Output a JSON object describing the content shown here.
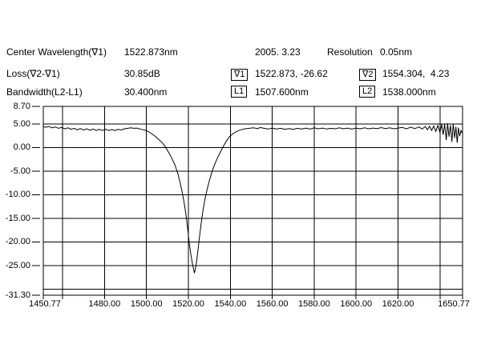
{
  "app": {
    "background": "#ffffff",
    "foreground": "#000000"
  },
  "readouts": {
    "rows": [
      {
        "label": "Center Wavelength(∇1)",
        "value": "1522.873nm"
      },
      {
        "label": "Loss(∇2-∇1)",
        "value": "30.85dB"
      },
      {
        "label": "Bandwidth(L2-L1)",
        "value": "30.400nm"
      }
    ],
    "date": "2005. 3.23",
    "resolution_label": "Resolution",
    "resolution_value": "0.05nm",
    "markers": [
      {
        "tag": "∇1",
        "value": "1522.873, -26.62"
      },
      {
        "tag": "∇2",
        "value": "1554.304,  4.23"
      },
      {
        "tag": "L1",
        "value": "1507.600nm"
      },
      {
        "tag": "L2",
        "value": "1538.000nm"
      }
    ]
  },
  "chart_data": {
    "type": "line",
    "title": "",
    "x_range": [
      1450.77,
      1650.77
    ],
    "y_range": [
      -31.3,
      8.7
    ],
    "grid": true,
    "legend": "none",
    "line_color": "#000000",
    "grid_color": "#000000",
    "x_gridlines": [
      1460,
      1480,
      1500,
      1520,
      1540,
      1560,
      1580,
      1600,
      1620,
      1640
    ],
    "y_gridlines": [
      5,
      0,
      -5,
      -10,
      -15,
      -20,
      -25,
      -30
    ],
    "x_ticks": [
      {
        "pos": 1450.77,
        "label": "1450.77"
      },
      {
        "pos": 1480,
        "label": "1480.00"
      },
      {
        "pos": 1500,
        "label": "1500.00"
      },
      {
        "pos": 1520,
        "label": "1520.00"
      },
      {
        "pos": 1540,
        "label": "1540.00"
      },
      {
        "pos": 1560,
        "label": "1560.00"
      },
      {
        "pos": 1580,
        "label": "1580.00"
      },
      {
        "pos": 1600,
        "label": "1600.00"
      },
      {
        "pos": 1620,
        "label": "1620.00"
      },
      {
        "pos": 1650.77,
        "label": "1650.77"
      }
    ],
    "y_ticks": [
      {
        "pos": 8.7,
        "label": "8.70"
      },
      {
        "pos": 5,
        "label": "5.00"
      },
      {
        "pos": 0,
        "label": "0.00"
      },
      {
        "pos": -5,
        "label": "-5.00"
      },
      {
        "pos": -10,
        "label": "-10.00"
      },
      {
        "pos": -15,
        "label": "-15.00"
      },
      {
        "pos": -20,
        "label": "-20.00"
      },
      {
        "pos": -25,
        "label": "-25.00"
      },
      {
        "pos": -31.3,
        "label": "-31.30"
      }
    ],
    "annotations": {
      "marker_nabla1": {
        "wavelength_nm": 1522.873,
        "level_db": -26.62
      },
      "marker_nabla2": {
        "wavelength_nm": 1554.304,
        "level_db": 4.23
      },
      "marker_L1_nm": 1507.6,
      "marker_L2_nm": 1538.0,
      "loss_db": 30.85,
      "bandwidth_nm": 30.4,
      "resolution_nm": 0.05
    },
    "series": [
      {
        "name": "transmission-trace",
        "points": [
          [
            1450.77,
            4.4
          ],
          [
            1452,
            4.3
          ],
          [
            1453.5,
            4.45
          ],
          [
            1455,
            4.15
          ],
          [
            1456.5,
            4.35
          ],
          [
            1458,
            4.05
          ],
          [
            1459.5,
            4.25
          ],
          [
            1461,
            3.95
          ],
          [
            1462.5,
            4.15
          ],
          [
            1464,
            3.85
          ],
          [
            1465.5,
            4.05
          ],
          [
            1467,
            3.75
          ],
          [
            1468.5,
            4.0
          ],
          [
            1470,
            3.7
          ],
          [
            1471.5,
            3.95
          ],
          [
            1473,
            3.65
          ],
          [
            1474.5,
            3.9
          ],
          [
            1476,
            3.6
          ],
          [
            1477.5,
            3.85
          ],
          [
            1479,
            3.6
          ],
          [
            1480.5,
            3.85
          ],
          [
            1482,
            3.6
          ],
          [
            1483.5,
            3.8
          ],
          [
            1485,
            3.6
          ],
          [
            1486.5,
            3.85
          ],
          [
            1488,
            3.7
          ],
          [
            1489.5,
            3.95
          ],
          [
            1491,
            4.05
          ],
          [
            1492.5,
            4.15
          ],
          [
            1494,
            4.05
          ],
          [
            1495.5,
            4.1
          ],
          [
            1497,
            3.9
          ],
          [
            1498.5,
            3.75
          ],
          [
            1500,
            3.55
          ],
          [
            1501.5,
            3.2
          ],
          [
            1503,
            2.75
          ],
          [
            1504.5,
            2.25
          ],
          [
            1506,
            1.65
          ],
          [
            1507.6,
            0.95
          ],
          [
            1509,
            0.1
          ],
          [
            1510.5,
            -1.0
          ],
          [
            1512,
            -2.2
          ],
          [
            1513.5,
            -3.6
          ],
          [
            1515,
            -5.6
          ],
          [
            1516,
            -7.4
          ],
          [
            1517,
            -9.4
          ],
          [
            1518,
            -11.8
          ],
          [
            1519,
            -14.8
          ],
          [
            1519.8,
            -17.8
          ],
          [
            1520.5,
            -20.6
          ],
          [
            1521.2,
            -22.8
          ],
          [
            1521.9,
            -24.6
          ],
          [
            1522.5,
            -25.9
          ],
          [
            1522.873,
            -26.62
          ],
          [
            1523.3,
            -25.8
          ],
          [
            1523.9,
            -24.2
          ],
          [
            1524.5,
            -22.0
          ],
          [
            1525.2,
            -19.3
          ],
          [
            1526,
            -16.4
          ],
          [
            1527,
            -13.2
          ],
          [
            1528,
            -10.7
          ],
          [
            1529,
            -8.7
          ],
          [
            1530,
            -7.0
          ],
          [
            1531,
            -5.5
          ],
          [
            1532,
            -4.2
          ],
          [
            1533,
            -3.1
          ],
          [
            1534,
            -2.1
          ],
          [
            1535,
            -1.2
          ],
          [
            1536,
            -0.3
          ],
          [
            1537,
            0.5
          ],
          [
            1538,
            1.3
          ],
          [
            1539,
            1.95
          ],
          [
            1540,
            2.45
          ],
          [
            1541.5,
            3.0
          ],
          [
            1543,
            3.4
          ],
          [
            1545,
            3.75
          ],
          [
            1547,
            3.95
          ],
          [
            1549,
            4.05
          ],
          [
            1551,
            4.15
          ],
          [
            1553,
            4.0
          ],
          [
            1554.304,
            4.23
          ],
          [
            1556,
            4.05
          ],
          [
            1558,
            3.9
          ],
          [
            1560,
            4.1
          ],
          [
            1562,
            3.9
          ],
          [
            1564,
            4.05
          ],
          [
            1566,
            3.85
          ],
          [
            1568,
            4.0
          ],
          [
            1570,
            3.85
          ],
          [
            1572,
            4.05
          ],
          [
            1574,
            3.9
          ],
          [
            1576,
            4.1
          ],
          [
            1578,
            3.9
          ],
          [
            1580,
            4.15
          ],
          [
            1582,
            3.95
          ],
          [
            1584,
            4.1
          ],
          [
            1586,
            3.9
          ],
          [
            1588,
            4.05
          ],
          [
            1590,
            3.95
          ],
          [
            1592,
            4.15
          ],
          [
            1594,
            3.95
          ],
          [
            1596,
            4.1
          ],
          [
            1598,
            3.9
          ],
          [
            1600,
            4.1
          ],
          [
            1602,
            3.95
          ],
          [
            1604,
            4.15
          ],
          [
            1606,
            3.95
          ],
          [
            1608,
            4.1
          ],
          [
            1610,
            4.0
          ],
          [
            1612,
            4.2
          ],
          [
            1614,
            4.0
          ],
          [
            1616,
            4.15
          ],
          [
            1618,
            3.95
          ],
          [
            1620,
            4.1
          ],
          [
            1622,
            4.25
          ],
          [
            1624,
            3.95
          ],
          [
            1626,
            4.3
          ],
          [
            1628,
            4.0
          ],
          [
            1630,
            4.35
          ],
          [
            1631.5,
            3.9
          ],
          [
            1633,
            4.45
          ],
          [
            1634,
            3.75
          ],
          [
            1635,
            4.5
          ],
          [
            1636,
            3.6
          ],
          [
            1637,
            4.55
          ],
          [
            1638,
            3.4
          ],
          [
            1639,
            4.65
          ],
          [
            1640,
            3.15
          ],
          [
            1640.8,
            4.9
          ],
          [
            1641.5,
            2.7
          ],
          [
            1642.2,
            4.95
          ],
          [
            1643,
            1.6
          ],
          [
            1643.6,
            5.1
          ],
          [
            1644.3,
            2.3
          ],
          [
            1645,
            4.7
          ],
          [
            1645.7,
            1.2
          ],
          [
            1646.3,
            5.0
          ],
          [
            1647,
            2.0
          ],
          [
            1647.6,
            4.4
          ],
          [
            1648.2,
            1.0
          ],
          [
            1648.8,
            4.2
          ],
          [
            1649.4,
            2.4
          ],
          [
            1650,
            3.6
          ],
          [
            1650.77,
            2.9
          ]
        ]
      }
    ]
  }
}
